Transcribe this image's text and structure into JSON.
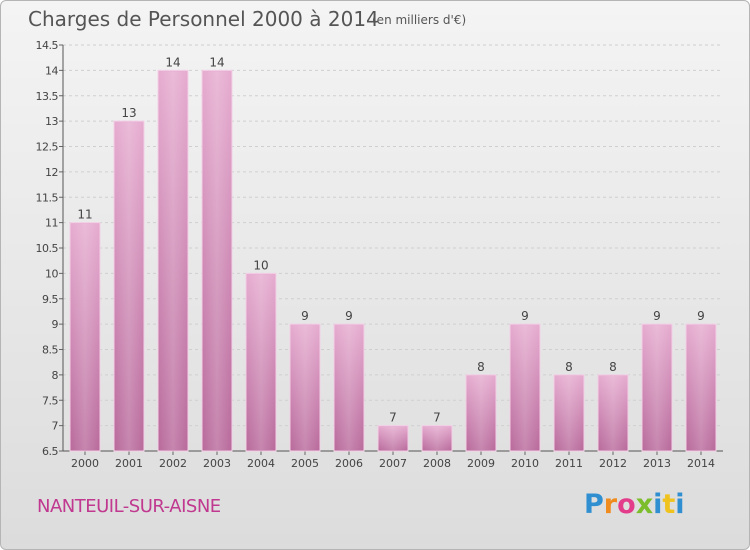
{
  "header": {
    "title": "Charges de Personnel 2000 à 2014",
    "subtitle": "(en milliers d'€)"
  },
  "footer": {
    "commune": "NANTEUIL-SUR-AISNE",
    "logo_text": "Proxiti"
  },
  "colors": {
    "bar_light": "#e6acd0",
    "bar_dark": "#b96b9c",
    "commune_text": "#c0388f"
  },
  "chart_data": {
    "type": "bar",
    "categories": [
      "2000",
      "2001",
      "2002",
      "2003",
      "2004",
      "2005",
      "2006",
      "2007",
      "2008",
      "2009",
      "2010",
      "2011",
      "2012",
      "2013",
      "2014"
    ],
    "values": [
      11,
      13,
      14,
      14,
      10,
      9,
      9,
      7,
      7,
      8,
      9,
      8,
      8,
      9,
      9
    ],
    "data_labels": [
      "11",
      "13",
      "14",
      "14",
      "10",
      "9",
      "9",
      "7",
      "7",
      "8",
      "9",
      "8",
      "8",
      "9",
      "9"
    ],
    "yticks": [
      6.5,
      7,
      7.5,
      8,
      8.5,
      9,
      9.5,
      10,
      10.5,
      11,
      11.5,
      12,
      12.5,
      13,
      13.5,
      14,
      14.5
    ],
    "ytick_labels": [
      "6.5",
      "7",
      "7.5",
      "8",
      "8.5",
      "9",
      "9.5",
      "10",
      "10.5",
      "11",
      "11.5",
      "12",
      "12.5",
      "13",
      "13.5",
      "14",
      "14.5"
    ],
    "ylim": [
      6.5,
      14.5
    ],
    "grid": true,
    "legend": "none"
  }
}
